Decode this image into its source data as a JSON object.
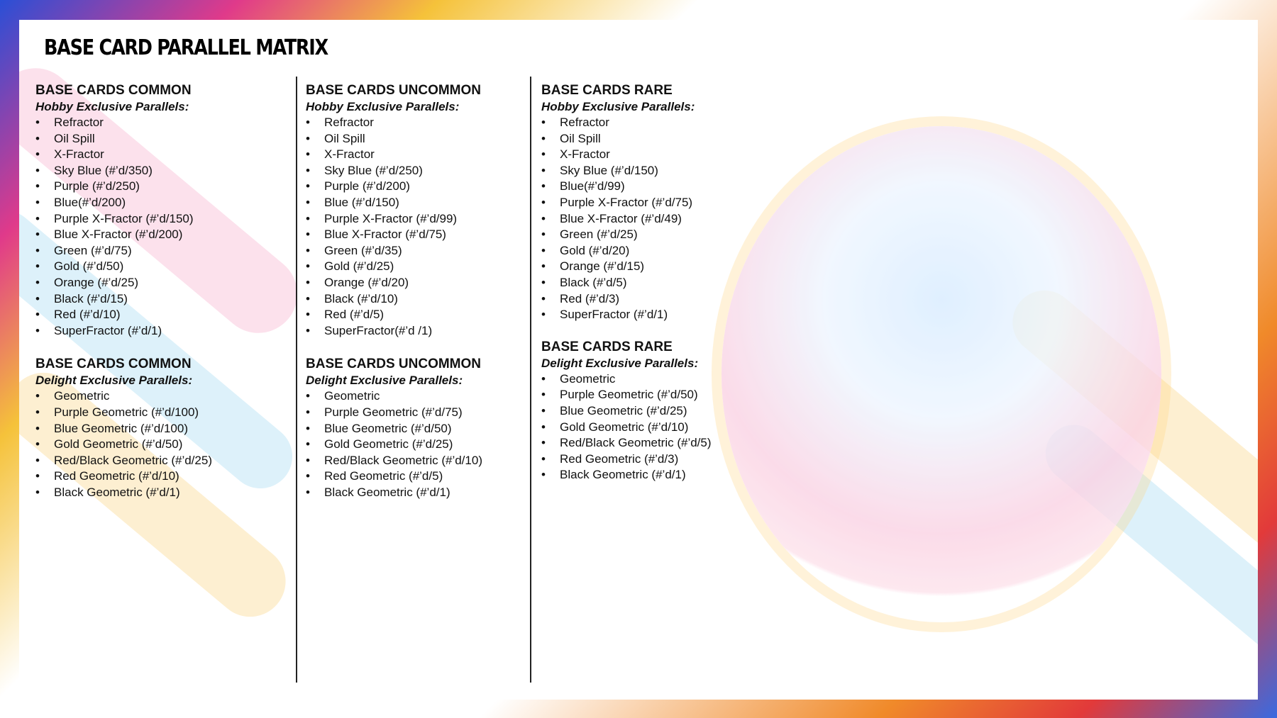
{
  "title": "BASE CARD PARALLEL MATRIX",
  "columns": [
    {
      "sections": [
        {
          "title": "BASE CARDS COMMON",
          "subtitle": "Hobby Exclusive Parallels:",
          "items": [
            "Refractor",
            "Oil Spill",
            "X-Fractor",
            "Sky Blue (#’d/350)",
            "Purple (#’d/250)",
            "Blue(#’d/200)",
            "Purple X-Fractor (#’d/150)",
            "Blue X-Fractor (#’d/200)",
            "Green (#’d/75)",
            "Gold (#’d/50)",
            "Orange (#’d/25)",
            "Black (#’d/15)",
            "Red (#’d/10)",
            "SuperFractor (#’d/1)"
          ]
        },
        {
          "title": "BASE CARDS COMMON",
          "subtitle": "Delight Exclusive Parallels:",
          "items": [
            "Geometric",
            "Purple Geometric (#’d/100)",
            "Blue Geometric (#’d/100)",
            "Gold Geometric (#’d/50)",
            "Red/Black Geometric (#’d/25)",
            "Red Geometric (#’d/10)",
            "Black Geometric (#’d/1)"
          ]
        }
      ]
    },
    {
      "sections": [
        {
          "title": "BASE CARDS UNCOMMON",
          "subtitle": "Hobby Exclusive Parallels:",
          "items": [
            "Refractor",
            "Oil Spill",
            "X-Fractor",
            "Sky Blue (#’d/250)",
            "Purple (#’d/200)",
            "Blue (#’d/150)",
            "Purple X-Fractor (#’d/99)",
            "Blue X-Fractor (#’d/75)",
            "Green (#’d/35)",
            "Gold (#’d/25)",
            "Orange (#’d/20)",
            "Black (#’d/10)",
            "Red (#’d/5)",
            "SuperFractor(#’d /1)"
          ]
        },
        {
          "title": "BASE CARDS UNCOMMON",
          "subtitle": "Delight Exclusive Parallels:",
          "items": [
            "Geometric",
            "Purple Geometric (#’d/75)",
            "Blue Geometric (#’d/50)",
            "Gold Geometric (#’d/25)",
            "Red/Black Geometric (#’d/10)",
            "Red Geometric (#’d/5)",
            "Black Geometric (#’d/1)"
          ]
        }
      ]
    },
    {
      "sections": [
        {
          "title": "BASE CARDS RARE",
          "subtitle": "Hobby Exclusive Parallels:",
          "items": [
            "Refractor",
            "Oil Spill",
            "X-Fractor",
            "Sky Blue (#’d/150)",
            "Blue(#’d/99)",
            "Purple X-Fractor (#’d/75)",
            "Blue X-Fractor (#’d/49)",
            "Green (#’d/25)",
            "Gold (#’d/20)",
            "Orange (#’d/15)",
            "Black (#’d/5)",
            "Red (#’d/3)",
            "SuperFractor (#’d/1)"
          ]
        },
        {
          "title": "BASE CARDS RARE",
          "subtitle": "Delight Exclusive Parallels:",
          "items": [
            "Geometric",
            "Purple Geometric (#’d/50)",
            "Blue Geometric (#’d/25)",
            "Gold Geometric (#’d/10)",
            "Red/Black Geometric (#’d/5)",
            "Red Geometric (#’d/3)",
            "Black Geometric (#’d/1)"
          ]
        }
      ]
    }
  ]
}
